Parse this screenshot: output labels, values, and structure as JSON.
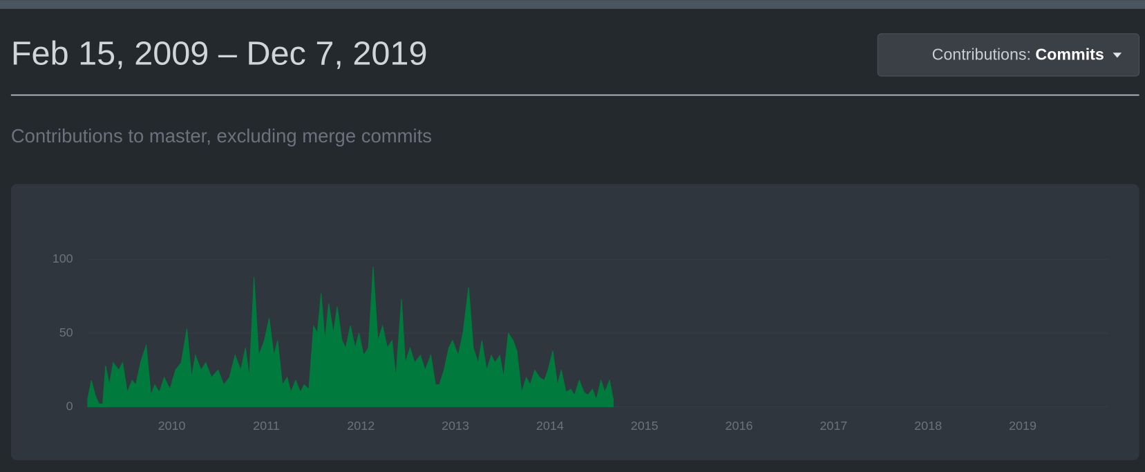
{
  "header": {
    "title": "Feb 15, 2009 – Dec 7, 2019",
    "button_label": "Contributions:",
    "button_value": "Commits"
  },
  "subtitle": "Contributions to master, excluding merge commits",
  "chart_data": {
    "type": "area",
    "color": "#007a3d",
    "grid": true,
    "xlim": [
      2009.11,
      2019.9
    ],
    "xticks": [
      2010,
      2011,
      2012,
      2013,
      2014,
      2015,
      2016,
      2017,
      2018,
      2019
    ],
    "ylim": [
      0,
      100
    ],
    "yticks": [
      0,
      50,
      100
    ],
    "x": [
      2009.11,
      2009.15,
      2009.19,
      2009.23,
      2009.27,
      2009.3,
      2009.34,
      2009.38,
      2009.44,
      2009.48,
      2009.53,
      2009.58,
      2009.62,
      2009.67,
      2009.73,
      2009.78,
      2009.82,
      2009.87,
      2009.92,
      2009.98,
      2010.04,
      2010.1,
      2010.16,
      2010.21,
      2010.25,
      2010.31,
      2010.36,
      2010.42,
      2010.49,
      2010.55,
      2010.61,
      2010.67,
      2010.73,
      2010.78,
      2010.82,
      2010.87,
      2010.92,
      2010.98,
      2011.03,
      2011.08,
      2011.12,
      2011.17,
      2011.22,
      2011.26,
      2011.31,
      2011.36,
      2011.4,
      2011.45,
      2011.5,
      2011.54,
      2011.58,
      2011.62,
      2011.66,
      2011.71,
      2011.75,
      2011.8,
      2011.84,
      2011.89,
      2011.94,
      2011.98,
      2012.03,
      2012.08,
      2012.13,
      2012.18,
      2012.23,
      2012.28,
      2012.33,
      2012.37,
      2012.43,
      2012.47,
      2012.52,
      2012.57,
      2012.63,
      2012.68,
      2012.74,
      2012.79,
      2012.83,
      2012.88,
      2012.93,
      2012.97,
      2013.03,
      2013.08,
      2013.14,
      2013.19,
      2013.24,
      2013.28,
      2013.33,
      2013.38,
      2013.42,
      2013.47,
      2013.51,
      2013.56,
      2013.61,
      2013.65,
      2013.7,
      2013.75,
      2013.79,
      2013.84,
      2013.89,
      2013.94,
      2013.98,
      2014.03,
      2014.08,
      2014.12,
      2014.17,
      2014.22,
      2014.26,
      2014.31,
      2014.36,
      2014.4,
      2014.45,
      2014.49,
      2014.54,
      2014.58,
      2014.63,
      2014.67
    ],
    "values": [
      5,
      18,
      8,
      2,
      2,
      28,
      15,
      30,
      25,
      30,
      10,
      18,
      15,
      30,
      42,
      8,
      15,
      10,
      20,
      12,
      25,
      30,
      53,
      20,
      35,
      25,
      30,
      20,
      25,
      15,
      20,
      35,
      25,
      40,
      20,
      88,
      35,
      45,
      60,
      35,
      45,
      15,
      20,
      10,
      18,
      10,
      15,
      12,
      55,
      50,
      77,
      45,
      70,
      50,
      68,
      45,
      40,
      55,
      40,
      50,
      35,
      40,
      95,
      45,
      55,
      40,
      45,
      20,
      73,
      30,
      40,
      30,
      35,
      25,
      35,
      15,
      15,
      25,
      40,
      45,
      35,
      50,
      81,
      40,
      30,
      45,
      25,
      35,
      30,
      35,
      20,
      50,
      45,
      38,
      10,
      20,
      15,
      25,
      20,
      18,
      25,
      38,
      15,
      25,
      10,
      12,
      8,
      18,
      10,
      8,
      12,
      5,
      18,
      10,
      18,
      5
    ]
  }
}
